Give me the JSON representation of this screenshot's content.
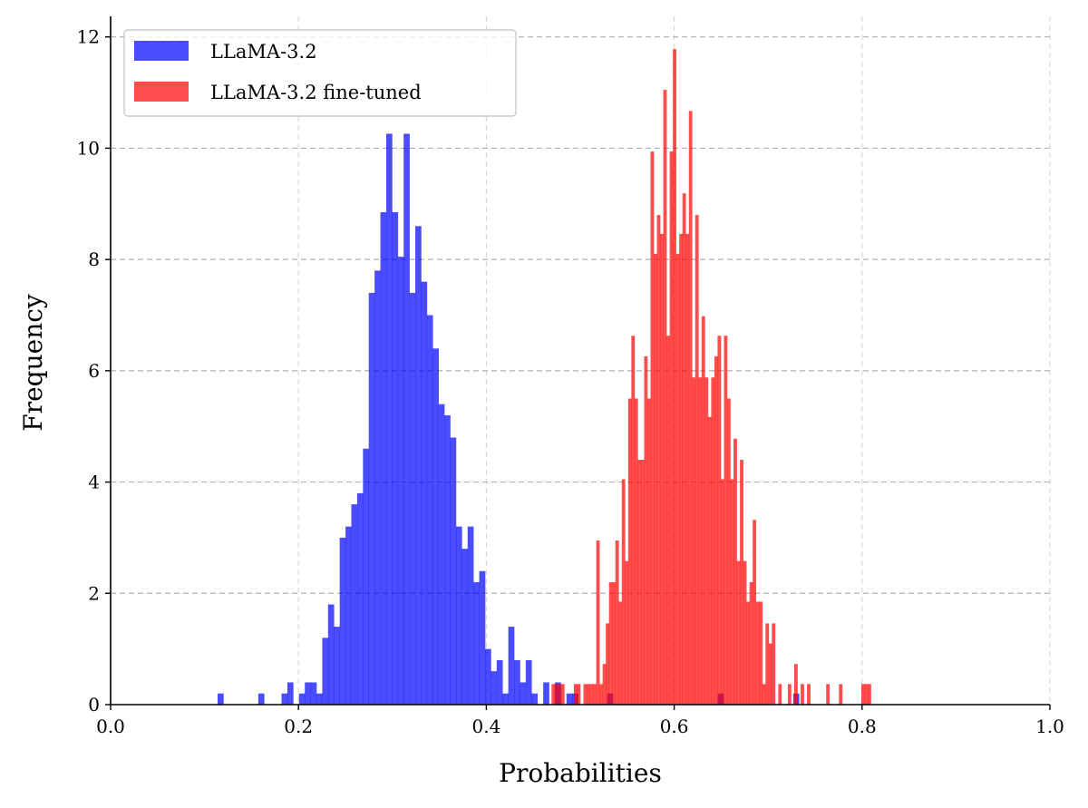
{
  "chart_data": {
    "type": "bar",
    "subtype": "histogram",
    "title": "",
    "xlabel": "Probabilities",
    "ylabel": "Frequency",
    "xlim": [
      0.0,
      1.0
    ],
    "ylim": [
      0,
      12.37
    ],
    "xticks": [
      "0.0",
      "0.2",
      "0.4",
      "0.6",
      "0.8",
      "1.0"
    ],
    "yticks": [
      "0",
      "2",
      "4",
      "6",
      "8",
      "10",
      "12"
    ],
    "grid": true,
    "legend_position": "top-left",
    "series": [
      {
        "name": "LLaMA-3.2",
        "color": "#0000ff",
        "alpha": 0.7,
        "bin_start": 0.1139,
        "bin_width": 0.00619,
        "values": [
          0.2,
          0,
          0,
          0,
          0,
          0,
          0,
          0.2,
          0,
          0,
          0,
          0.2,
          0.4,
          0,
          0.2,
          0.4,
          0.4,
          0.2,
          1.2,
          1.8,
          1.4,
          3.0,
          3.2,
          3.6,
          3.8,
          4.6,
          7.4,
          7.8,
          8.85,
          10.26,
          8.85,
          8.05,
          10.26,
          7.4,
          8.6,
          7.6,
          7.0,
          6.4,
          5.4,
          5.2,
          4.8,
          3.2,
          2.8,
          3.2,
          2.2,
          2.4,
          1.0,
          0.6,
          0.8,
          0.2,
          1.4,
          0.8,
          0.4,
          0.8,
          0.2,
          0,
          0.4,
          0,
          0.4,
          0,
          0.2,
          0.2,
          0,
          0,
          0,
          0,
          0,
          0.2,
          0,
          0,
          0,
          0,
          0,
          0,
          0,
          0,
          0,
          0,
          0,
          0,
          0,
          0,
          0,
          0,
          0,
          0,
          0.2,
          0,
          0,
          0,
          0,
          0,
          0,
          0,
          0,
          0,
          0,
          0,
          0,
          0.2
        ]
      },
      {
        "name": "LLaMA-3.2 fine-tuned",
        "color": "#ff0000",
        "alpha": 0.7,
        "bin_start": 0.4694,
        "bin_width": 0.0034,
        "values": [
          0.37,
          0.37,
          0.37,
          0.37,
          0,
          0,
          0,
          0.37,
          0.37,
          0,
          0.37,
          0.37,
          0.37,
          0.37,
          2.95,
          0.37,
          0.73,
          1.46,
          2.2,
          2.2,
          2.95,
          1.85,
          4.05,
          2.58,
          5.5,
          6.63,
          5.5,
          4.4,
          4.4,
          6.26,
          5.5,
          9.94,
          8.1,
          8.8,
          8.46,
          11.05,
          6.63,
          9.94,
          11.78,
          8.1,
          8.46,
          9.19,
          8.46,
          10.67,
          5.88,
          8.8,
          5.88,
          6.98,
          5.88,
          5.17,
          5.88,
          6.26,
          6.63,
          4.05,
          6.63,
          5.5,
          4.05,
          4.78,
          2.58,
          4.4,
          2.58,
          1.85,
          2.2,
          3.32,
          1.85,
          1.85,
          0.37,
          1.46,
          1.1,
          1.46,
          0,
          0.37,
          0,
          0,
          0.37,
          0,
          0.73,
          0,
          0.37,
          0,
          0.37,
          0,
          0,
          0,
          0,
          0,
          0.37,
          0,
          0,
          0,
          0.37,
          0,
          0,
          0,
          0,
          0,
          0,
          0.37,
          0.37,
          0.37
        ]
      }
    ]
  }
}
